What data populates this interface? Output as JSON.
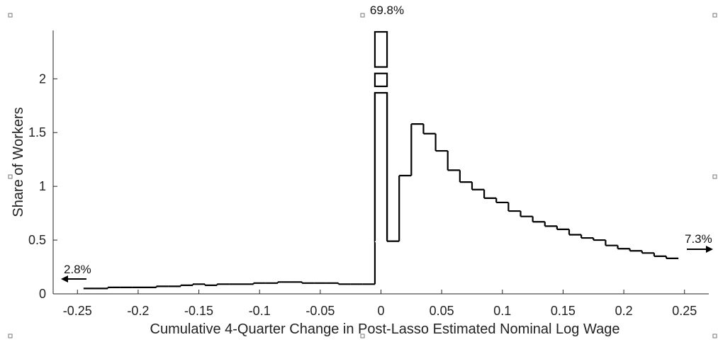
{
  "chart_data": {
    "type": "histogram",
    "xlabel": "Cumulative 4-Quarter Change in Post-Lasso Estimated Nominal Log Wage",
    "ylabel": "Share of Workers",
    "xlim": [
      -0.27,
      0.27
    ],
    "ylim": [
      0,
      2.45
    ],
    "xticks": [
      -0.25,
      -0.2,
      -0.15,
      -0.1,
      -0.05,
      0,
      0.05,
      0.1,
      0.15,
      0.2,
      0.25
    ],
    "xtick_labels": [
      "-0.25",
      "-0.2",
      "-0.15",
      "-0.1",
      "-0.05",
      "0",
      "0.05",
      "0.1",
      "0.15",
      "0.2",
      "0.25"
    ],
    "yticks": [
      0,
      0.5,
      1,
      1.5,
      2
    ],
    "ytick_labels": [
      "0",
      "0.5",
      "1",
      "1.5",
      "2"
    ],
    "bin_width": 0.01,
    "bins": [
      {
        "x0": -0.245,
        "x1": -0.235,
        "y": 0.05
      },
      {
        "x0": -0.235,
        "x1": -0.225,
        "y": 0.05
      },
      {
        "x0": -0.225,
        "x1": -0.215,
        "y": 0.06
      },
      {
        "x0": -0.215,
        "x1": -0.205,
        "y": 0.06
      },
      {
        "x0": -0.205,
        "x1": -0.195,
        "y": 0.06
      },
      {
        "x0": -0.195,
        "x1": -0.185,
        "y": 0.06
      },
      {
        "x0": -0.185,
        "x1": -0.175,
        "y": 0.07
      },
      {
        "x0": -0.175,
        "x1": -0.165,
        "y": 0.07
      },
      {
        "x0": -0.165,
        "x1": -0.155,
        "y": 0.08
      },
      {
        "x0": -0.155,
        "x1": -0.145,
        "y": 0.09
      },
      {
        "x0": -0.145,
        "x1": -0.135,
        "y": 0.08
      },
      {
        "x0": -0.135,
        "x1": -0.125,
        "y": 0.09
      },
      {
        "x0": -0.125,
        "x1": -0.115,
        "y": 0.09
      },
      {
        "x0": -0.115,
        "x1": -0.105,
        "y": 0.09
      },
      {
        "x0": -0.105,
        "x1": -0.095,
        "y": 0.1
      },
      {
        "x0": -0.095,
        "x1": -0.085,
        "y": 0.1
      },
      {
        "x0": -0.085,
        "x1": -0.075,
        "y": 0.11
      },
      {
        "x0": -0.075,
        "x1": -0.065,
        "y": 0.11
      },
      {
        "x0": -0.065,
        "x1": -0.055,
        "y": 0.1
      },
      {
        "x0": -0.055,
        "x1": -0.045,
        "y": 0.1
      },
      {
        "x0": -0.045,
        "x1": -0.035,
        "y": 0.1
      },
      {
        "x0": -0.035,
        "x1": -0.025,
        "y": 0.09
      },
      {
        "x0": -0.025,
        "x1": -0.015,
        "y": 0.09
      },
      {
        "x0": -0.015,
        "x1": -0.005,
        "y": 0.09
      },
      {
        "x0": 0.005,
        "x1": 0.015,
        "y": 0.49
      },
      {
        "x0": 0.015,
        "x1": 0.025,
        "y": 1.1
      },
      {
        "x0": 0.025,
        "x1": 0.035,
        "y": 1.58
      },
      {
        "x0": 0.035,
        "x1": 0.045,
        "y": 1.49
      },
      {
        "x0": 0.045,
        "x1": 0.055,
        "y": 1.33
      },
      {
        "x0": 0.055,
        "x1": 0.065,
        "y": 1.15
      },
      {
        "x0": 0.065,
        "x1": 0.075,
        "y": 1.04
      },
      {
        "x0": 0.075,
        "x1": 0.085,
        "y": 0.97
      },
      {
        "x0": 0.085,
        "x1": 0.095,
        "y": 0.89
      },
      {
        "x0": 0.095,
        "x1": 0.105,
        "y": 0.85
      },
      {
        "x0": 0.105,
        "x1": 0.115,
        "y": 0.77
      },
      {
        "x0": 0.115,
        "x1": 0.125,
        "y": 0.72
      },
      {
        "x0": 0.125,
        "x1": 0.135,
        "y": 0.67
      },
      {
        "x0": 0.135,
        "x1": 0.145,
        "y": 0.63
      },
      {
        "x0": 0.145,
        "x1": 0.155,
        "y": 0.6
      },
      {
        "x0": 0.155,
        "x1": 0.165,
        "y": 0.55
      },
      {
        "x0": 0.165,
        "x1": 0.175,
        "y": 0.52
      },
      {
        "x0": 0.175,
        "x1": 0.185,
        "y": 0.5
      },
      {
        "x0": 0.185,
        "x1": 0.195,
        "y": 0.45
      },
      {
        "x0": 0.195,
        "x1": 0.205,
        "y": 0.42
      },
      {
        "x0": 0.205,
        "x1": 0.215,
        "y": 0.4
      },
      {
        "x0": 0.215,
        "x1": 0.225,
        "y": 0.38
      },
      {
        "x0": 0.225,
        "x1": 0.235,
        "y": 0.35
      },
      {
        "x0": 0.235,
        "x1": 0.245,
        "y": 0.33
      }
    ],
    "zero_bin": {
      "x0": -0.005,
      "x1": 0.005,
      "value_label": "69.8%",
      "broken_axis": true
    },
    "tail_annotations": [
      {
        "side": "left",
        "label": "2.8%"
      },
      {
        "side": "right",
        "label": "7.3%"
      }
    ]
  }
}
